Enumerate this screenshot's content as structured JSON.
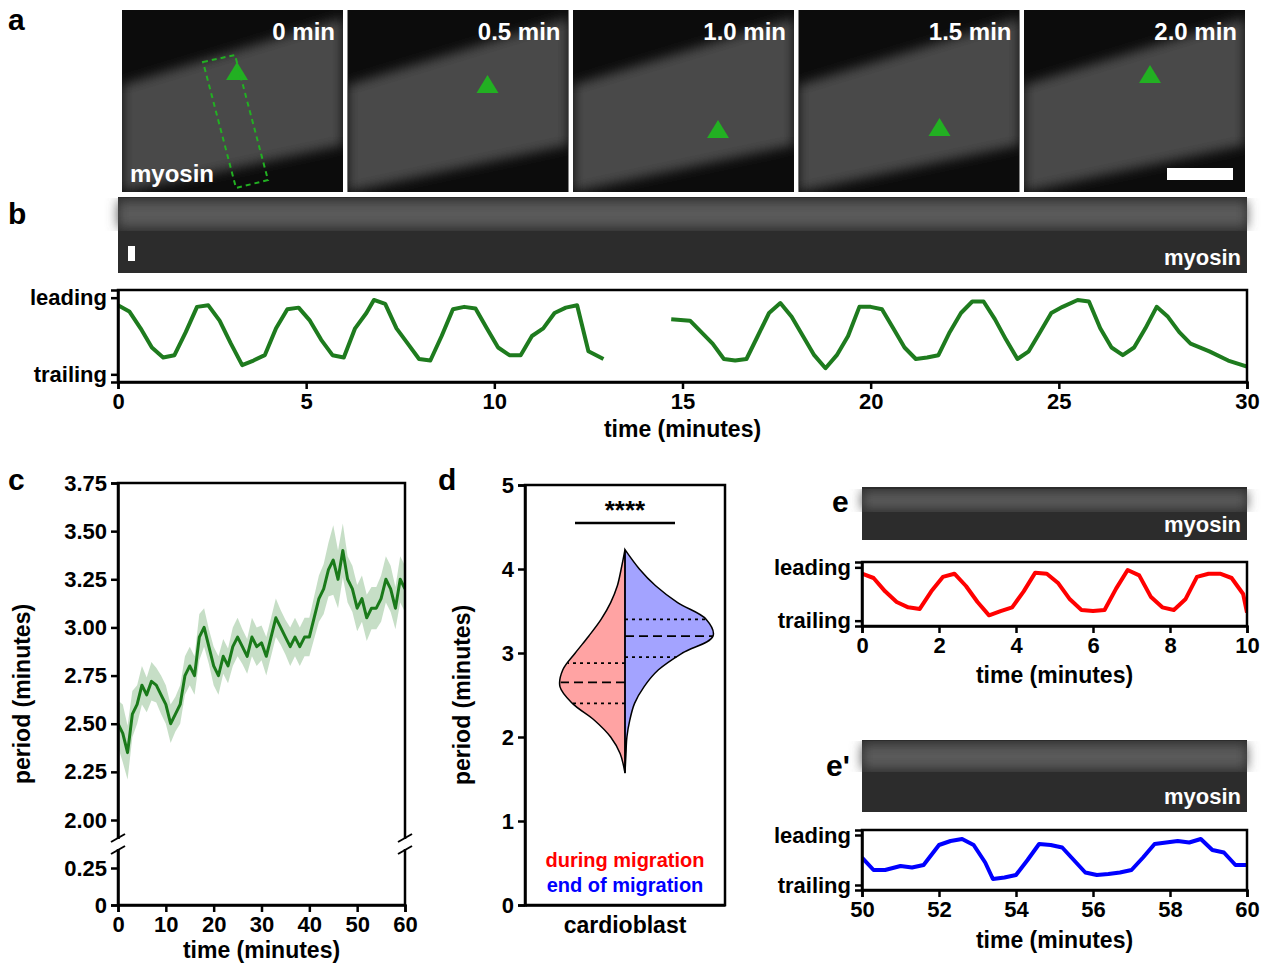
{
  "chart_data": [
    {
      "type": "image",
      "label": "a",
      "frames": [
        "0 min",
        "0.5 min",
        "1.0 min",
        "1.5 min",
        "2.0 min"
      ],
      "channel": "myosin"
    },
    {
      "type": "line",
      "label": "b",
      "kymograph": "myosin",
      "xlabel": "time (minutes)",
      "x": [
        0,
        0.3,
        0.6,
        0.9,
        1.2,
        1.5,
        1.8,
        2.1,
        2.4,
        2.7,
        3.0,
        3.3,
        3.6,
        3.9,
        4.2,
        4.5,
        4.8,
        5.1,
        5.4,
        5.7,
        6.0,
        6.3,
        6.6,
        6.8,
        7.1,
        7.4,
        7.7,
        8.0,
        8.3,
        8.6,
        8.9,
        9.2,
        9.5,
        9.8,
        10.1,
        10.4,
        10.7,
        11.0,
        11.3,
        11.6,
        11.9,
        12.2,
        12.5,
        12.9,
        13.5,
        14.7,
        15.2,
        15.5,
        15.8,
        16.1,
        16.4,
        16.7,
        17.0,
        17.3,
        17.6,
        17.9,
        18.2,
        18.5,
        18.8,
        19.1,
        19.4,
        19.7,
        20.0,
        20.3,
        20.6,
        20.9,
        21.2,
        21.5,
        21.8,
        22.1,
        22.4,
        22.7,
        23.0,
        23.3,
        23.6,
        23.9,
        24.2,
        24.5,
        24.8,
        25.1,
        25.5,
        25.8,
        26.1,
        26.4,
        26.7,
        27.0,
        27.3,
        27.6,
        27.9,
        28.2,
        28.5,
        29.0,
        29.5,
        30.0
      ],
      "series": [
        {
          "color": "#1e7b1e",
          "values": [
            0.9,
            0.82,
            0.6,
            0.35,
            0.22,
            0.25,
            0.55,
            0.88,
            0.9,
            0.7,
            0.4,
            0.12,
            0.18,
            0.25,
            0.6,
            0.85,
            0.87,
            0.7,
            0.45,
            0.25,
            0.22,
            0.6,
            0.8,
            0.97,
            0.92,
            0.6,
            0.4,
            0.2,
            0.18,
            0.5,
            0.85,
            0.88,
            0.86,
            0.6,
            0.35,
            0.25,
            0.25,
            0.5,
            0.6,
            0.8,
            0.87,
            0.9,
            0.3,
            0.2,
            null,
            0.72,
            0.7,
            0.55,
            0.4,
            0.2,
            0.18,
            0.2,
            0.5,
            0.8,
            0.93,
            0.75,
            0.5,
            0.25,
            0.08,
            0.25,
            0.5,
            0.88,
            0.88,
            0.85,
            0.6,
            0.35,
            0.2,
            0.22,
            0.25,
            0.55,
            0.8,
            0.95,
            0.95,
            0.72,
            0.45,
            0.2,
            0.3,
            0.55,
            0.8,
            0.88,
            0.97,
            0.95,
            0.6,
            0.35,
            0.25,
            0.35,
            0.6,
            0.88,
            0.75,
            0.55,
            0.4,
            0.3,
            0.18,
            0.1
          ]
        }
      ],
      "xlim": [
        0,
        30
      ],
      "xticks": [
        0,
        5,
        10,
        15,
        20,
        25,
        30
      ],
      "ylim": [
        -0.1,
        1.1
      ],
      "yticks": [
        {
          "value": 1,
          "label": "leading"
        },
        {
          "value": 0,
          "label": "trailing"
        }
      ]
    },
    {
      "type": "line",
      "label": "c",
      "xlabel": "time (minutes)",
      "ylabel": "period (minutes)",
      "x": [
        0,
        1,
        2,
        3,
        4,
        5,
        6,
        7,
        8,
        9,
        10,
        11,
        12,
        13,
        14,
        15,
        16,
        17,
        18,
        19,
        20,
        21,
        22,
        23,
        24,
        25,
        26,
        27,
        28,
        29,
        30,
        31,
        32,
        33,
        34,
        35,
        36,
        37,
        38,
        39,
        40,
        41,
        42,
        43,
        44,
        45,
        46,
        47,
        48,
        49,
        50,
        51,
        52,
        53,
        54,
        55,
        56,
        57,
        58,
        59,
        60
      ],
      "series": [
        {
          "color": "#1a7a1a",
          "values": [
            2.5,
            2.45,
            2.35,
            2.55,
            2.6,
            2.7,
            2.65,
            2.72,
            2.7,
            2.65,
            2.6,
            2.5,
            2.55,
            2.6,
            2.75,
            2.8,
            2.75,
            2.95,
            3.0,
            2.9,
            2.8,
            2.75,
            2.85,
            2.8,
            2.9,
            2.95,
            2.9,
            2.85,
            2.95,
            2.9,
            2.92,
            2.85,
            2.95,
            3.05,
            3.0,
            2.95,
            2.9,
            2.95,
            2.9,
            2.95,
            2.95,
            3.05,
            3.15,
            3.2,
            3.3,
            3.35,
            3.25,
            3.4,
            3.25,
            3.2,
            3.1,
            3.15,
            3.05,
            3.1,
            3.1,
            3.15,
            3.25,
            3.2,
            3.1,
            3.25,
            3.2
          ],
          "error": [
            0.12,
            0.15,
            0.14,
            0.12,
            0.1,
            0.1,
            0.09,
            0.1,
            0.09,
            0.1,
            0.1,
            0.1,
            0.09,
            0.1,
            0.1,
            0.1,
            0.1,
            0.12,
            0.1,
            0.09,
            0.1,
            0.1,
            0.09,
            0.09,
            0.1,
            0.1,
            0.09,
            0.09,
            0.1,
            0.1,
            0.09,
            0.1,
            0.1,
            0.1,
            0.09,
            0.09,
            0.1,
            0.1,
            0.1,
            0.1,
            0.1,
            0.11,
            0.12,
            0.13,
            0.14,
            0.18,
            0.15,
            0.14,
            0.12,
            0.12,
            0.12,
            0.12,
            0.12,
            0.11,
            0.11,
            0.12,
            0.12,
            0.12,
            0.11,
            0.12,
            0.12
          ]
        }
      ],
      "xlim": [
        0,
        60
      ],
      "xticks": [
        0,
        10,
        20,
        30,
        40,
        50,
        60
      ],
      "ylim": [
        0,
        3.75
      ],
      "ybreak": [
        0.25,
        2
      ],
      "yticks": [
        0,
        0.25,
        {
          "value": 2,
          "label": "2.00"
        },
        2.25,
        {
          "value": 2.5,
          "label": "2.50"
        },
        2.75,
        {
          "value": 3,
          "label": "3.00"
        },
        3.25,
        {
          "value": 3.5,
          "label": "3.50"
        },
        3.75
      ]
    },
    {
      "type": "violin",
      "label": "d",
      "ylabel": "period (minutes)",
      "categories": [
        "cardioblast"
      ],
      "annotation": "****",
      "legend": "bottom",
      "ylim": [
        0,
        5
      ],
      "yticks": [
        0,
        1,
        2,
        3,
        4,
        5
      ],
      "density_y": [
        1.57,
        1.8,
        2.0,
        2.2,
        2.4,
        2.6,
        2.8,
        3.0,
        3.2,
        3.4,
        3.6,
        3.8,
        4.0,
        4.23
      ],
      "series": [
        {
          "name": "during migration",
          "color": "#ff0000",
          "density": [
            0,
            0.05,
            0.15,
            0.32,
            0.55,
            0.68,
            0.65,
            0.52,
            0.38,
            0.25,
            0.15,
            0.08,
            0.04,
            0
          ],
          "quartiles": [
            2.4,
            2.65,
            2.88
          ]
        },
        {
          "name": "end of migration",
          "color": "#0000ff",
          "density": [
            0,
            0.01,
            0.02,
            0.05,
            0.1,
            0.2,
            0.35,
            0.6,
            0.92,
            0.85,
            0.55,
            0.32,
            0.15,
            0
          ],
          "quartiles": [
            2.95,
            3.2,
            3.4
          ]
        }
      ]
    },
    {
      "type": "line",
      "label": "e",
      "kymograph": "myosin",
      "xlabel": "time (minutes)",
      "x": [
        0,
        0.3,
        0.6,
        0.9,
        1.2,
        1.5,
        1.8,
        2.1,
        2.4,
        2.7,
        3.0,
        3.3,
        3.6,
        3.9,
        4.2,
        4.5,
        4.8,
        5.1,
        5.4,
        5.7,
        6.0,
        6.3,
        6.6,
        6.9,
        7.2,
        7.5,
        7.8,
        8.1,
        8.4,
        8.7,
        9.0,
        9.3,
        9.6,
        9.9,
        10
      ],
      "series": [
        {
          "color": "#ff0000",
          "values": [
            0.88,
            0.8,
            0.55,
            0.35,
            0.25,
            0.22,
            0.55,
            0.82,
            0.88,
            0.65,
            0.35,
            0.1,
            0.18,
            0.25,
            0.55,
            0.9,
            0.88,
            0.7,
            0.4,
            0.2,
            0.18,
            0.2,
            0.6,
            0.95,
            0.85,
            0.45,
            0.25,
            0.2,
            0.4,
            0.82,
            0.88,
            0.88,
            0.8,
            0.5,
            0.15
          ]
        }
      ],
      "xlim": [
        0,
        10
      ],
      "xticks": [
        0,
        2,
        4,
        6,
        8,
        10
      ],
      "ylim": [
        -0.1,
        1.1
      ],
      "yticks": [
        {
          "value": 1,
          "label": "leading"
        },
        {
          "value": 0,
          "label": "trailing"
        }
      ]
    },
    {
      "type": "line",
      "label": "e'",
      "kymograph": "myosin",
      "xlabel": "time (minutes)",
      "x": [
        50,
        50.3,
        50.6,
        51,
        51.3,
        51.6,
        52,
        52.3,
        52.6,
        52.9,
        53.2,
        53.4,
        53.7,
        54,
        54.3,
        54.6,
        54.9,
        55.2,
        55.5,
        55.8,
        56.1,
        56.4,
        56.7,
        57,
        57.3,
        57.6,
        57.9,
        58.2,
        58.5,
        58.8,
        59.1,
        59.4,
        59.7,
        60
      ],
      "series": [
        {
          "color": "#0000ff",
          "values": [
            0.55,
            0.3,
            0.3,
            0.38,
            0.35,
            0.4,
            0.8,
            0.88,
            0.92,
            0.8,
            0.45,
            0.12,
            0.15,
            0.2,
            0.5,
            0.82,
            0.8,
            0.75,
            0.5,
            0.25,
            0.2,
            0.22,
            0.25,
            0.3,
            0.55,
            0.82,
            0.85,
            0.88,
            0.85,
            0.92,
            0.7,
            0.65,
            0.4,
            0.4
          ]
        }
      ],
      "xlim": [
        50,
        60
      ],
      "xticks": [
        50,
        52,
        54,
        56,
        58,
        60
      ],
      "ylim": [
        -0.1,
        1.1
      ],
      "yticks": [
        {
          "value": 1,
          "label": "leading"
        },
        {
          "value": 0,
          "label": "trailing"
        }
      ]
    }
  ]
}
